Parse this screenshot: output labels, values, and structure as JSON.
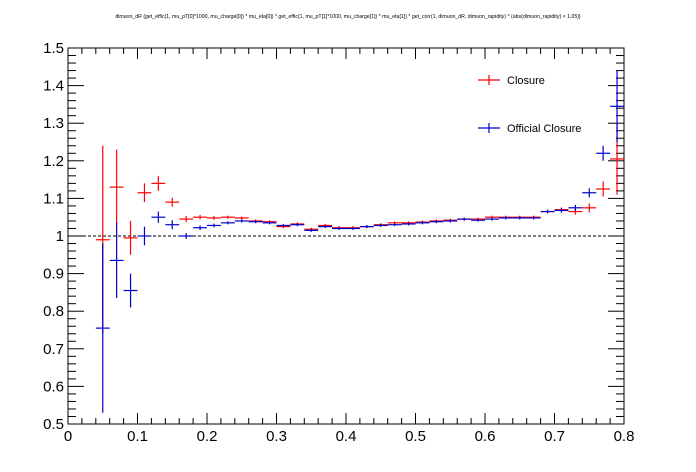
{
  "chart_data": {
    "type": "scatter",
    "title": "dimuon_dR {get_effic(1, mu_pT[0]*1000, mu_charge[0]) * mu_eta[0]) * get_effic(1, mu_pT[1]*1000, mu_charge[1]) * mu_eta[1]) * get_corr(1, dimuon_dR, dimuon_rapidity) * (abs(dimuon_rapidity) < 1.05)}",
    "xlabel": "",
    "ylabel": "",
    "xlim": [
      0,
      0.8
    ],
    "ylim": [
      0.5,
      1.5
    ],
    "x_ticks": [
      "0",
      "0.1",
      "0.2",
      "0.3",
      "0.4",
      "0.5",
      "0.6",
      "0.7",
      "0.8"
    ],
    "y_ticks": [
      "0.5",
      "0.6",
      "0.7",
      "0.8",
      "0.9",
      "1",
      "1.1",
      "1.2",
      "1.3",
      "1.4",
      "1.5"
    ],
    "grid": false,
    "legend_position": "top-right",
    "reference_line": 1.0,
    "series": [
      {
        "name": "Closure",
        "color": "#ff0000",
        "x": [
          0.05,
          0.07,
          0.09,
          0.11,
          0.13,
          0.15,
          0.17,
          0.19,
          0.21,
          0.23,
          0.25,
          0.27,
          0.29,
          0.31,
          0.33,
          0.35,
          0.37,
          0.39,
          0.41,
          0.43,
          0.45,
          0.47,
          0.49,
          0.51,
          0.53,
          0.55,
          0.57,
          0.59,
          0.61,
          0.63,
          0.65,
          0.67,
          0.69,
          0.71,
          0.73,
          0.75,
          0.77,
          0.79
        ],
        "y": [
          0.99,
          1.13,
          0.995,
          1.115,
          1.14,
          1.09,
          1.045,
          1.05,
          1.048,
          1.05,
          1.048,
          1.04,
          1.038,
          1.025,
          1.032,
          1.018,
          1.028,
          1.022,
          1.022,
          1.025,
          1.03,
          1.035,
          1.035,
          1.037,
          1.04,
          1.042,
          1.045,
          1.045,
          1.05,
          1.05,
          1.05,
          1.05,
          1.065,
          1.07,
          1.065,
          1.075,
          1.125,
          1.205
        ],
        "yerr": [
          0.25,
          0.1,
          0.045,
          0.025,
          0.02,
          0.012,
          0.008,
          0.006,
          0.005,
          0.004,
          0.004,
          0.004,
          0.004,
          0.004,
          0.004,
          0.004,
          0.004,
          0.004,
          0.004,
          0.004,
          0.004,
          0.004,
          0.004,
          0.004,
          0.004,
          0.004,
          0.004,
          0.004,
          0.004,
          0.004,
          0.004,
          0.004,
          0.005,
          0.006,
          0.008,
          0.012,
          0.02,
          0.095
        ],
        "xerr": 0.01
      },
      {
        "name": "Official Closure",
        "color": "#0000cc",
        "x": [
          0.05,
          0.07,
          0.09,
          0.11,
          0.13,
          0.15,
          0.17,
          0.19,
          0.21,
          0.23,
          0.25,
          0.27,
          0.29,
          0.31,
          0.33,
          0.35,
          0.37,
          0.39,
          0.41,
          0.43,
          0.45,
          0.47,
          0.49,
          0.51,
          0.53,
          0.55,
          0.57,
          0.59,
          0.61,
          0.63,
          0.65,
          0.67,
          0.69,
          0.71,
          0.73,
          0.75,
          0.77,
          0.79
        ],
        "y": [
          0.755,
          0.935,
          0.855,
          1.0,
          1.05,
          1.03,
          1.0,
          1.022,
          1.028,
          1.035,
          1.04,
          1.038,
          1.035,
          1.028,
          1.03,
          1.015,
          1.025,
          1.02,
          1.02,
          1.025,
          1.028,
          1.03,
          1.032,
          1.035,
          1.038,
          1.04,
          1.045,
          1.042,
          1.045,
          1.048,
          1.048,
          1.048,
          1.065,
          1.068,
          1.075,
          1.115,
          1.22,
          1.345
        ],
        "yerr": [
          0.225,
          0.1,
          0.045,
          0.025,
          0.015,
          0.012,
          0.008,
          0.006,
          0.005,
          0.004,
          0.004,
          0.004,
          0.004,
          0.004,
          0.004,
          0.004,
          0.004,
          0.004,
          0.004,
          0.004,
          0.004,
          0.004,
          0.004,
          0.004,
          0.004,
          0.004,
          0.004,
          0.004,
          0.004,
          0.004,
          0.004,
          0.004,
          0.005,
          0.006,
          0.008,
          0.012,
          0.02,
          0.095
        ],
        "xerr": 0.01
      }
    ]
  }
}
